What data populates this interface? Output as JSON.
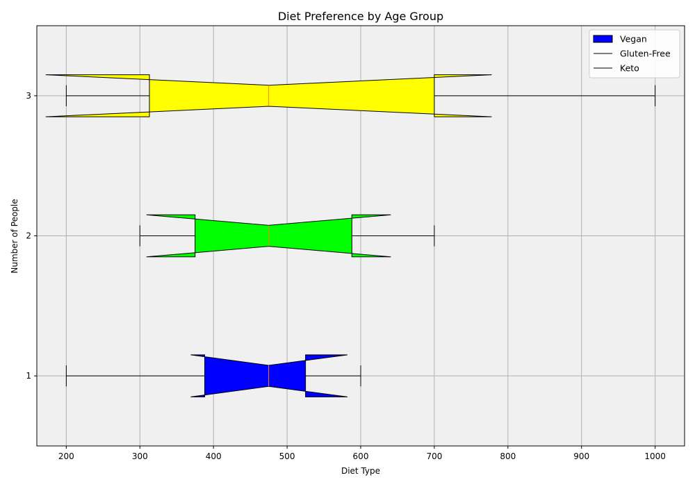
{
  "chart_data": {
    "type": "boxplot",
    "orientation": "horizontal",
    "notched": true,
    "title": "Diet Preference by Age Group",
    "xlabel": "Diet Type",
    "ylabel": "Number of People",
    "xlim": [
      160,
      1040
    ],
    "ylim": [
      0.5,
      3.5
    ],
    "xticks": [
      200,
      300,
      400,
      500,
      600,
      700,
      800,
      900,
      1000
    ],
    "yticks": [
      1,
      2,
      3
    ],
    "grid": true,
    "background": "#f0f0f0",
    "median_color": "#ff7f0e",
    "legend_position": "top-right",
    "legend": [
      "Vegan",
      "Gluten-Free",
      "Keto"
    ],
    "boxes": [
      {
        "position": 1,
        "color": "#0000ff",
        "whisker_low": 200,
        "q1": 388,
        "median": 475,
        "q3": 525,
        "whisker_high": 600,
        "notch_low": 369,
        "notch_high": 582
      },
      {
        "position": 2,
        "color": "#00ff00",
        "whisker_low": 300,
        "q1": 375,
        "median": 475,
        "q3": 588,
        "whisker_high": 700,
        "notch_low": 309,
        "notch_high": 641
      },
      {
        "position": 3,
        "color": "#ffff00",
        "whisker_low": 200,
        "q1": 313,
        "median": 475,
        "q3": 700,
        "whisker_high": 1000,
        "notch_low": 172,
        "notch_high": 778
      }
    ]
  }
}
